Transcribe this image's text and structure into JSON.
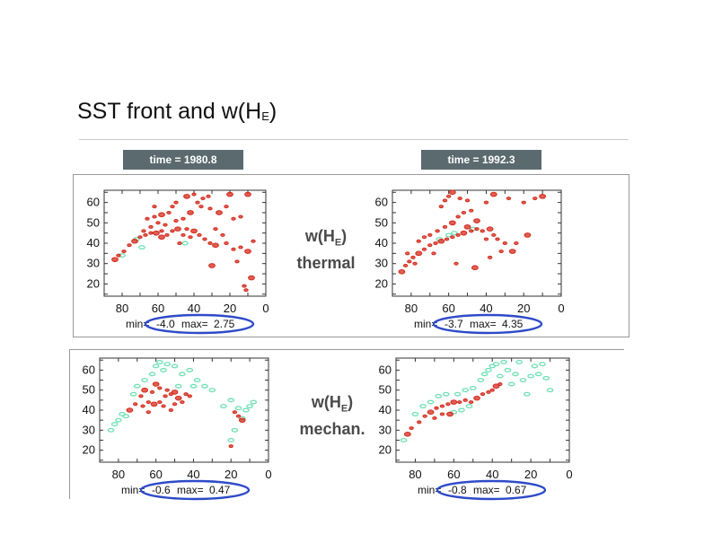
{
  "slide": {
    "title": "SST front and w(H",
    "title_sub": "E",
    "title_close": ")"
  },
  "time_labels": [
    "time = 1980.8",
    "time = 1992.3"
  ],
  "row_labels": [
    {
      "line1": "w(H",
      "sub": "E",
      "close": ")",
      "line2": "thermal"
    },
    {
      "line1": "w(H",
      "sub": "E",
      "close": ")",
      "line2": "mechan."
    }
  ],
  "colors": {
    "positive": "#d42a1c",
    "negative": "#6fe0b4",
    "ellipse": "#2e4bc8",
    "badge": "#5b6a6f"
  },
  "chart_data": [
    {
      "type": "scatter",
      "panel": "thermal-1980.8",
      "x_ticks": [
        "80",
        "60",
        "40",
        "20",
        "0"
      ],
      "y_ticks": [
        "60",
        "50",
        "40",
        "30",
        "20"
      ],
      "xlim": [
        90,
        0
      ],
      "ylim": [
        14,
        66
      ],
      "min_label": "min=",
      "min_value": "-4.0",
      "max_label": "max=",
      "max_value": "2.75",
      "positive": [
        [
          84,
          32
        ],
        [
          82,
          34
        ],
        [
          79,
          36
        ],
        [
          76,
          39
        ],
        [
          73,
          41
        ],
        [
          70,
          43
        ],
        [
          67,
          44
        ],
        [
          64,
          45
        ],
        [
          61,
          45
        ],
        [
          58,
          46
        ],
        [
          55,
          44
        ],
        [
          52,
          46
        ],
        [
          49,
          47
        ],
        [
          46,
          44
        ],
        [
          44,
          47
        ],
        [
          42,
          43
        ],
        [
          40,
          46
        ],
        [
          37,
          44
        ],
        [
          34,
          42
        ],
        [
          31,
          40
        ],
        [
          28,
          39
        ],
        [
          22,
          40
        ],
        [
          18,
          37
        ],
        [
          14,
          38
        ],
        [
          10,
          36
        ],
        [
          7,
          41
        ],
        [
          66,
          52
        ],
        [
          62,
          53
        ],
        [
          58,
          54
        ],
        [
          54,
          55
        ],
        [
          50,
          51
        ],
        [
          46,
          52
        ],
        [
          42,
          55
        ],
        [
          38,
          60
        ],
        [
          35,
          62
        ],
        [
          32,
          63
        ],
        [
          44,
          63
        ],
        [
          40,
          64
        ],
        [
          36,
          58
        ],
        [
          31,
          57
        ],
        [
          26,
          55
        ],
        [
          22,
          58
        ],
        [
          18,
          52
        ],
        [
          14,
          53
        ],
        [
          10,
          64
        ],
        [
          62,
          58
        ],
        [
          56,
          49
        ],
        [
          48,
          40
        ],
        [
          30,
          29
        ],
        [
          16,
          31
        ],
        [
          12,
          19
        ],
        [
          11,
          17
        ],
        [
          8,
          23
        ],
        [
          68,
          46
        ],
        [
          60,
          50
        ],
        [
          52,
          58
        ],
        [
          20,
          64
        ],
        [
          28,
          47
        ],
        [
          24,
          44
        ],
        [
          50,
          60
        ],
        [
          58,
          43
        ],
        [
          64,
          48
        ]
      ],
      "negative": [
        [
          80,
          34
        ],
        [
          72,
          42
        ],
        [
          45,
          40
        ],
        [
          69,
          38
        ]
      ]
    },
    {
      "type": "scatter",
      "panel": "thermal-1992.3",
      "x_ticks": [
        "80",
        "60",
        "40",
        "20",
        "0"
      ],
      "y_ticks": [
        "60",
        "50",
        "40",
        "30",
        "20"
      ],
      "xlim": [
        90,
        0
      ],
      "ylim": [
        14,
        66
      ],
      "min_label": "min=",
      "min_value": "-3.7",
      "max_label": "max=",
      "max_value": "4.35",
      "positive": [
        [
          85,
          26
        ],
        [
          83,
          29
        ],
        [
          81,
          31
        ],
        [
          79,
          33
        ],
        [
          76,
          35
        ],
        [
          73,
          37
        ],
        [
          70,
          39
        ],
        [
          67,
          40
        ],
        [
          64,
          41
        ],
        [
          61,
          42
        ],
        [
          58,
          43
        ],
        [
          55,
          44
        ],
        [
          52,
          45
        ],
        [
          48,
          46
        ],
        [
          45,
          47
        ],
        [
          42,
          46
        ],
        [
          38,
          47
        ],
        [
          36,
          44
        ],
        [
          34,
          42
        ],
        [
          30,
          40
        ],
        [
          26,
          36
        ],
        [
          70,
          44
        ],
        [
          66,
          46
        ],
        [
          62,
          48
        ],
        [
          58,
          50
        ],
        [
          55,
          53
        ],
        [
          52,
          55
        ],
        [
          48,
          56
        ],
        [
          45,
          51
        ],
        [
          64,
          58
        ],
        [
          62,
          61
        ],
        [
          60,
          63
        ],
        [
          58,
          65
        ],
        [
          54,
          62
        ],
        [
          50,
          61
        ],
        [
          40,
          60
        ],
        [
          36,
          64
        ],
        [
          28,
          62
        ],
        [
          20,
          60
        ],
        [
          14,
          62
        ],
        [
          10,
          63
        ],
        [
          76,
          41
        ],
        [
          73,
          43
        ],
        [
          56,
          30
        ],
        [
          46,
          28
        ],
        [
          38,
          33
        ],
        [
          32,
          36
        ],
        [
          24,
          40
        ],
        [
          18,
          44
        ],
        [
          40,
          42
        ],
        [
          82,
          35
        ],
        [
          78,
          30
        ],
        [
          50,
          48
        ],
        [
          68,
          35
        ]
      ],
      "negative": [
        [
          65,
          42
        ],
        [
          57,
          45
        ],
        [
          47,
          47
        ],
        [
          60,
          44
        ]
      ]
    },
    {
      "type": "scatter",
      "panel": "mechanical-1980.8",
      "x_ticks": [
        "80",
        "60",
        "40",
        "20",
        "0"
      ],
      "y_ticks": [
        "60",
        "50",
        "40",
        "30",
        "20"
      ],
      "xlim": [
        90,
        0
      ],
      "ylim": [
        14,
        66
      ],
      "min_label": "min=",
      "min_value": "-0.6",
      "max_label": "max=",
      "max_value": "0.47",
      "positive": [
        [
          74,
          40
        ],
        [
          71,
          43
        ],
        [
          67,
          42
        ],
        [
          64,
          44
        ],
        [
          61,
          43
        ],
        [
          58,
          44
        ],
        [
          55,
          47
        ],
        [
          52,
          48
        ],
        [
          48,
          46
        ],
        [
          46,
          44
        ],
        [
          44,
          48
        ],
        [
          42,
          47
        ],
        [
          66,
          50
        ],
        [
          62,
          49
        ],
        [
          58,
          51
        ],
        [
          54,
          50
        ],
        [
          50,
          49
        ],
        [
          56,
          42
        ],
        [
          50,
          43
        ],
        [
          68,
          47
        ],
        [
          60,
          53
        ],
        [
          18,
          39
        ],
        [
          16,
          37
        ],
        [
          20,
          22
        ],
        [
          14,
          35
        ],
        [
          64,
          39
        ],
        [
          52,
          40
        ]
      ],
      "negative": [
        [
          84,
          30
        ],
        [
          82,
          33
        ],
        [
          80,
          35
        ],
        [
          78,
          38
        ],
        [
          76,
          37
        ],
        [
          60,
          62
        ],
        [
          58,
          64
        ],
        [
          56,
          60
        ],
        [
          54,
          63
        ],
        [
          50,
          62
        ],
        [
          46,
          58
        ],
        [
          42,
          60
        ],
        [
          38,
          55
        ],
        [
          34,
          52
        ],
        [
          30,
          50
        ],
        [
          20,
          45
        ],
        [
          16,
          41
        ],
        [
          12,
          40
        ],
        [
          14,
          36
        ],
        [
          18,
          30
        ],
        [
          20,
          25
        ],
        [
          70,
          52
        ],
        [
          66,
          55
        ],
        [
          62,
          58
        ],
        [
          72,
          48
        ],
        [
          48,
          52
        ],
        [
          40,
          52
        ],
        [
          24,
          42
        ],
        [
          10,
          42
        ],
        [
          8,
          44
        ]
      ]
    },
    {
      "type": "scatter",
      "panel": "mechanical-1992.3",
      "x_ticks": [
        "80",
        "60",
        "40",
        "20",
        "0"
      ],
      "y_ticks": [
        "60",
        "50",
        "40",
        "30",
        "20"
      ],
      "xlim": [
        90,
        0
      ],
      "ylim": [
        14,
        66
      ],
      "min_label": "min=",
      "min_value": "-0.8",
      "max_label": "max=",
      "max_value": "0.67",
      "positive": [
        [
          84,
          28
        ],
        [
          82,
          31
        ],
        [
          78,
          34
        ],
        [
          75,
          37
        ],
        [
          72,
          39
        ],
        [
          69,
          41
        ],
        [
          66,
          42
        ],
        [
          63,
          43
        ],
        [
          60,
          44
        ],
        [
          57,
          44
        ],
        [
          54,
          45
        ],
        [
          51,
          44
        ],
        [
          48,
          46
        ],
        [
          45,
          48
        ],
        [
          42,
          49
        ],
        [
          40,
          50
        ],
        [
          38,
          52
        ],
        [
          36,
          53
        ],
        [
          70,
          36
        ],
        [
          66,
          38
        ],
        [
          62,
          38
        ]
      ],
      "negative": [
        [
          80,
          38
        ],
        [
          76,
          42
        ],
        [
          72,
          44
        ],
        [
          68,
          47
        ],
        [
          64,
          48
        ],
        [
          58,
          48
        ],
        [
          54,
          50
        ],
        [
          50,
          51
        ],
        [
          46,
          55
        ],
        [
          44,
          58
        ],
        [
          42,
          60
        ],
        [
          40,
          62
        ],
        [
          38,
          63
        ],
        [
          36,
          57
        ],
        [
          32,
          60
        ],
        [
          28,
          58
        ],
        [
          24,
          55
        ],
        [
          20,
          57
        ],
        [
          16,
          58
        ],
        [
          12,
          56
        ],
        [
          10,
          50
        ],
        [
          52,
          42
        ],
        [
          56,
          40
        ],
        [
          60,
          39
        ],
        [
          34,
          64
        ],
        [
          26,
          64
        ],
        [
          18,
          62
        ],
        [
          14,
          63
        ],
        [
          86,
          25
        ],
        [
          30,
          53
        ],
        [
          22,
          48
        ]
      ]
    }
  ]
}
